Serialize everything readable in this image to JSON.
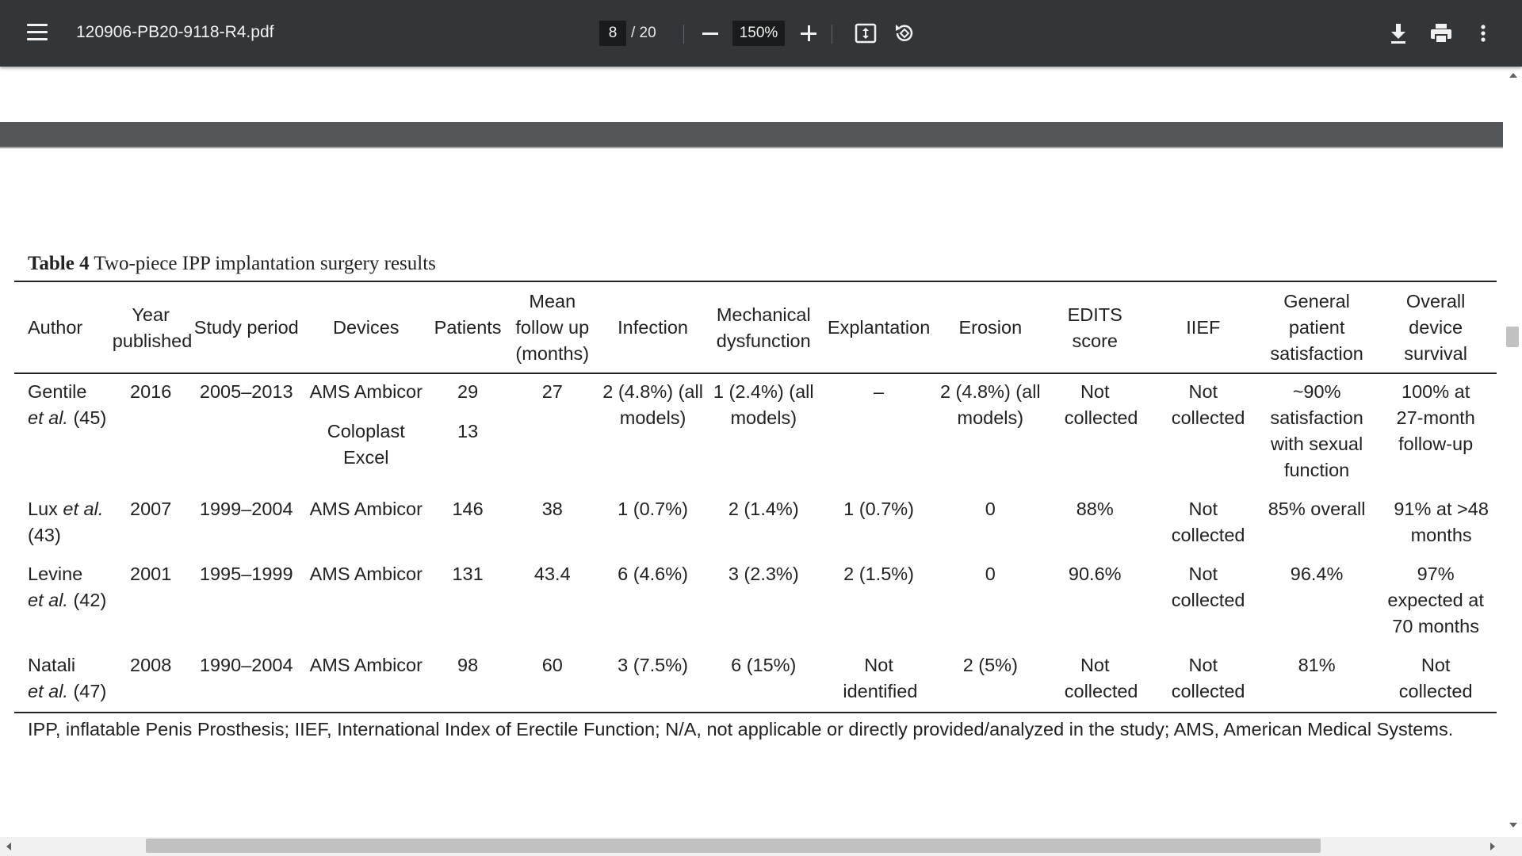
{
  "toolbar": {
    "file_name": "120906-PB20-9118-R4.pdf",
    "current_page": "8",
    "total_pages": "/ 20",
    "zoom": "150%",
    "icons": [
      "menu-icon",
      "zoom-out-icon",
      "zoom-in-icon",
      "fit-page-icon",
      "rotate-icon",
      "download-icon",
      "print-icon",
      "more-icon"
    ]
  },
  "table": {
    "caption_label": "Table 4",
    "caption_text": "Two-piece IPP implantation surgery results",
    "headers": {
      "author": "Author",
      "year": [
        "Year",
        "published"
      ],
      "study_period": "Study period",
      "devices": "Devices",
      "patients": "Patients",
      "follow_up": [
        "Mean",
        "follow up",
        "(months)"
      ],
      "infection": "Infection",
      "mechanical": [
        "Mechanical",
        "dysfunction"
      ],
      "explantation": "Explantation",
      "erosion": "Erosion",
      "edits": [
        "EDITS",
        "score"
      ],
      "iief": "IIEF",
      "satisfaction": [
        "General",
        "patient",
        "satisfaction"
      ],
      "survival": [
        "Overall",
        "device",
        "survival"
      ]
    },
    "rows": [
      {
        "author_name": "Gentile",
        "author_suffix": "(45)",
        "year": "2016",
        "study_period": "2005–2013",
        "device_1": "AMS Ambicor",
        "device_2": "Coloplast Excel",
        "patients_1": "29",
        "patients_2": "13",
        "follow_up": "27",
        "infection": "2 (4.8%) (all models)",
        "mechanical": "1 (2.4%) (all models)",
        "explantation": "–",
        "erosion": "2 (4.8%) (all models)",
        "edits": "Not collected",
        "iief": "Not collected",
        "satisfaction": "~90% satisfaction with sexual function",
        "survival": "100% at 27-month follow-up"
      },
      {
        "author_name": "Lux",
        "author_suffix": "(43)",
        "year": "2007",
        "study_period": "1999–2004",
        "device_1": "AMS Ambicor",
        "patients_1": "146",
        "follow_up": "38",
        "infection": "1 (0.7%)",
        "mechanical": "2 (1.4%)",
        "explantation": "1 (0.7%)",
        "erosion": "0",
        "edits": "88%",
        "iief": "Not collected",
        "satisfaction": "85% overall",
        "survival": "91% at >48 months"
      },
      {
        "author_name": "Levine",
        "author_suffix": "(42)",
        "year": "2001",
        "study_period": "1995–1999",
        "device_1": "AMS Ambicor",
        "patients_1": "131",
        "follow_up": "43.4",
        "infection": "6 (4.6%)",
        "mechanical": "3 (2.3%)",
        "explantation": "2 (1.5%)",
        "erosion": "0",
        "edits": "90.6%",
        "iief": "Not collected",
        "satisfaction": "96.4%",
        "survival": "97% expected at 70 months"
      },
      {
        "author_name": "Natali",
        "author_suffix": "(47)",
        "year": "2008",
        "study_period": "1990–2004",
        "device_1": "AMS Ambicor",
        "patients_1": "98",
        "follow_up": "60",
        "infection": "3 (7.5%)",
        "mechanical": "6 (15%)",
        "explantation": "Not identified",
        "erosion": "2 (5%)",
        "edits": "Not collected",
        "iief": "Not collected",
        "satisfaction": "81%",
        "survival": "Not collected"
      }
    ],
    "et_al": "et al.",
    "footnote": "IPP, inflatable Penis Prosthesis; IIEF, International Index of Erectile Function; N/A, not applicable or directly provided/analyzed in the study; AMS, American Medical Systems."
  },
  "colors": {
    "toolbar_bg": "#323639",
    "page_gap": "#525659",
    "text": "#222222"
  }
}
